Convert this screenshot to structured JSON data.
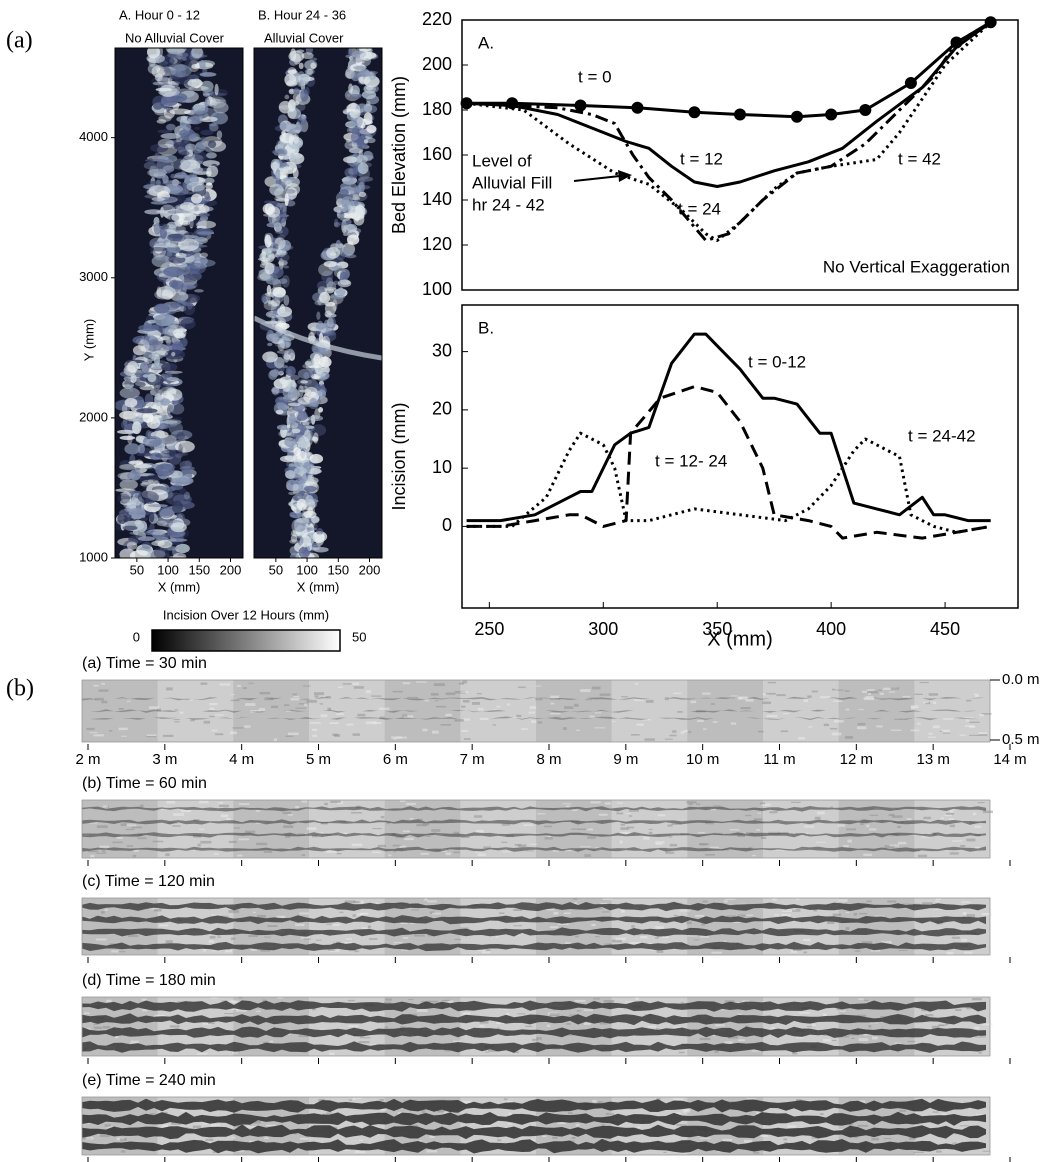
{
  "figure_labels": [
    "(a)",
    "(b)"
  ],
  "chart_data": [
    {
      "type": "heatmap",
      "panels": [
        {
          "title": "A. Hour 0 - 12",
          "subtitle": "No Alluvial Cover"
        },
        {
          "title": "B. Hour 24 - 36",
          "subtitle": "Alluvial Cover"
        }
      ],
      "xlabel": "X (mm)",
      "ylabel": "Y (mm)",
      "xlim": [
        15,
        220
      ],
      "xticks": [
        50,
        100,
        150,
        200
      ],
      "ylim": [
        1000,
        4640
      ],
      "yticks": [
        1000,
        2000,
        3000,
        4000
      ],
      "colorbar": {
        "label": "Incision Over 12 Hours (mm)",
        "lim": [
          0,
          50
        ],
        "ticks": [
          0,
          50
        ],
        "colors": [
          "#000000",
          "#ffffff"
        ]
      }
    },
    {
      "type": "line",
      "panel_label": "A.",
      "ylabel": "Bed Elevation (mm)",
      "xlim": [
        238,
        482
      ],
      "ylim": [
        100,
        220
      ],
      "yticks": [
        100,
        120,
        140,
        160,
        180,
        200,
        220
      ],
      "series": [
        {
          "name": "t = 0",
          "color": "#000000",
          "style": "solid",
          "markers": true,
          "x": [
            240,
            260,
            290,
            315,
            340,
            360,
            385,
            400,
            415,
            435,
            455,
            470
          ],
          "values": [
            183,
            183,
            182,
            181,
            179,
            178,
            177,
            178,
            180,
            192,
            210,
            219
          ]
        },
        {
          "name": "t = 12",
          "color": "#000000",
          "style": "solid",
          "markers": false,
          "x": [
            240,
            260,
            280,
            295,
            310,
            320,
            330,
            340,
            350,
            360,
            375,
            390,
            405,
            420,
            440,
            455,
            470
          ],
          "values": [
            183,
            182,
            178,
            172,
            166,
            163,
            155,
            148,
            146,
            148,
            153,
            157,
            163,
            175,
            190,
            208,
            219
          ]
        },
        {
          "name": "t = 24",
          "color": "#000000",
          "style": "dash-dot",
          "markers": false,
          "x": [
            240,
            260,
            280,
            295,
            305,
            313,
            320,
            330,
            345,
            355,
            370,
            385,
            400,
            415,
            430,
            445,
            455,
            470
          ],
          "values": [
            183,
            182,
            181,
            178,
            174,
            160,
            150,
            140,
            122,
            125,
            140,
            152,
            155,
            165,
            180,
            195,
            210,
            219
          ]
        },
        {
          "name": "t = 42",
          "color": "#000000",
          "style": "dotted",
          "markers": false,
          "x": [
            240,
            265,
            285,
            305,
            320,
            335,
            345,
            350,
            360,
            375,
            385,
            400,
            420,
            430,
            440,
            450,
            470
          ],
          "values": [
            183,
            180,
            165,
            152,
            147,
            135,
            125,
            122,
            130,
            145,
            152,
            155,
            158,
            170,
            185,
            200,
            219
          ]
        }
      ],
      "annotations": [
        "Level of",
        "Alluvial Fill",
        "hr 24 - 42",
        "No Vertical Exaggeration"
      ]
    },
    {
      "type": "line",
      "panel_label": "B.",
      "ylabel": "Incision (mm)",
      "xlabel": "X (mm)",
      "xlim": [
        238,
        482
      ],
      "xticks": [
        250,
        300,
        350,
        400,
        450
      ],
      "ylim": [
        -14,
        38
      ],
      "yticks": [
        0,
        10,
        20,
        30
      ],
      "series": [
        {
          "name": "t = 0-12",
          "color": "#000000",
          "style": "solid",
          "markers": false,
          "x": [
            240,
            255,
            270,
            285,
            290,
            295,
            305,
            312,
            320,
            330,
            340,
            345,
            350,
            360,
            370,
            375,
            385,
            395,
            400,
            405,
            410,
            420,
            430,
            440,
            445,
            450,
            460,
            470
          ],
          "values": [
            1,
            1,
            2,
            5,
            6,
            6,
            14,
            16,
            17,
            28,
            33,
            33,
            31,
            27,
            22,
            22,
            21,
            16,
            16,
            10,
            4,
            3,
            2,
            5,
            2,
            2,
            1,
            1
          ]
        },
        {
          "name": "t = 12- 24",
          "color": "#000000",
          "style": "dashed",
          "markers": false,
          "x": [
            240,
            255,
            270,
            285,
            290,
            300,
            310,
            312,
            325,
            340,
            350,
            360,
            370,
            375,
            390,
            400,
            405,
            420,
            440,
            455,
            470
          ],
          "values": [
            0,
            0,
            1,
            2,
            2,
            0,
            1,
            16,
            22,
            24,
            23,
            18,
            10,
            2,
            1,
            0,
            -2,
            -1,
            -2,
            -1,
            0
          ]
        },
        {
          "name": "t = 24-42",
          "color": "#000000",
          "style": "dotted",
          "markers": false,
          "x": [
            240,
            260,
            275,
            285,
            290,
            300,
            305,
            310,
            320,
            340,
            360,
            380,
            390,
            400,
            410,
            415,
            425,
            430,
            435,
            445,
            455,
            470
          ],
          "values": [
            0,
            0,
            5,
            13,
            16,
            14,
            10,
            1,
            1,
            3,
            2,
            1,
            3,
            7,
            13,
            15,
            13,
            12,
            2,
            0,
            -1,
            0
          ]
        }
      ]
    },
    {
      "type": "image-strips",
      "panels": [
        "(a) Time = 30 min",
        "(b) Time = 60 min",
        "(c) Time = 120 min",
        "(d) Time = 180 min",
        "(e) Time = 240 min"
      ],
      "xlim": [
        2,
        14
      ],
      "xticks": [
        {
          "value": 2,
          "label": "2 m"
        },
        {
          "value": 3,
          "label": "3 m"
        },
        {
          "value": 4,
          "label": "4 m"
        },
        {
          "value": 5,
          "label": "5 m"
        },
        {
          "value": 6,
          "label": "6 m"
        },
        {
          "value": 7,
          "label": "7 m"
        },
        {
          "value": 8,
          "label": "8 m"
        },
        {
          "value": 9,
          "label": "9 m"
        },
        {
          "value": 10,
          "label": "10 m"
        },
        {
          "value": 11,
          "label": "11 m"
        },
        {
          "value": 12,
          "label": "12 m"
        },
        {
          "value": 13,
          "label": "13 m"
        },
        {
          "value": 14,
          "label": "14 m"
        }
      ],
      "ylim": [
        0,
        0.5
      ],
      "yticks": [
        {
          "value": 0,
          "label": "0.0 m"
        },
        {
          "value": 0.5,
          "label": "0.5 m"
        }
      ]
    }
  ]
}
